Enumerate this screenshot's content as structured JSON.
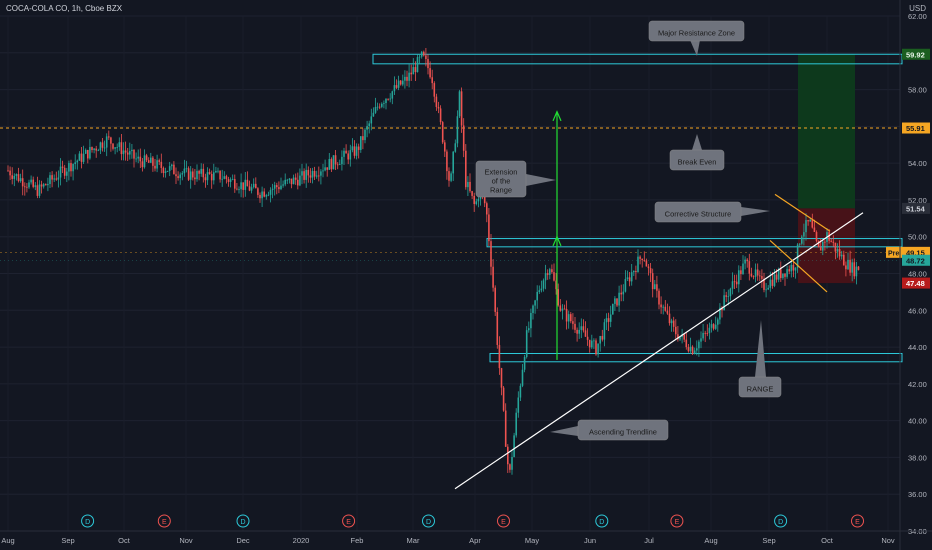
{
  "header": {
    "symbol_title": "COCA-COLA CO, 1h, Cboe BZX",
    "currency": "USD"
  },
  "colors": {
    "background": "#131722",
    "up": "#26a69a",
    "down": "#ef5350",
    "zone": "#2dc9d9",
    "trendline": "#ffffff",
    "pattern": "#f5a623",
    "arrow": "#22dd33",
    "breakeven": "#f5a623",
    "profit_box": "#0d3b1c",
    "loss_box": "#4a1218",
    "callout": "#6f737d"
  },
  "chart_data": {
    "type": "candlestick",
    "x_ticks": [
      "Aug",
      "Sep",
      "Oct",
      "Nov",
      "Dec",
      "2020",
      "Feb",
      "Mar",
      "Apr",
      "May",
      "Jun",
      "Jul",
      "Aug",
      "Sep",
      "Oct",
      "Nov"
    ],
    "y_ticks": [
      "62.00",
      "60.00",
      "58.00",
      "56.00",
      "54.00",
      "52.00",
      "50.00",
      "48.00",
      "46.00",
      "44.00",
      "42.00",
      "40.00",
      "38.00",
      "36.00",
      "34.00"
    ],
    "ylim": [
      34,
      62
    ],
    "price_path": [
      {
        "x": 0,
        "y": 53.6
      },
      {
        "x": 0.5,
        "y": 52.5
      },
      {
        "x": 1,
        "y": 53.8
      },
      {
        "x": 1.7,
        "y": 55.3
      },
      {
        "x": 2.2,
        "y": 54.2
      },
      {
        "x": 3.0,
        "y": 53.4
      },
      {
        "x": 3.6,
        "y": 53.3
      },
      {
        "x": 4.3,
        "y": 52.4
      },
      {
        "x": 5.0,
        "y": 53.2
      },
      {
        "x": 5.6,
        "y": 54.1
      },
      {
        "x": 6.0,
        "y": 54.7
      },
      {
        "x": 6.4,
        "y": 57.3
      },
      {
        "x": 6.9,
        "y": 58.6
      },
      {
        "x": 7.15,
        "y": 59.8
      },
      {
        "x": 7.3,
        "y": 58.8
      },
      {
        "x": 7.5,
        "y": 55.0
      },
      {
        "x": 7.6,
        "y": 52.7
      },
      {
        "x": 7.75,
        "y": 57.6
      },
      {
        "x": 7.85,
        "y": 53.0
      },
      {
        "x": 8.0,
        "y": 51.6
      },
      {
        "x": 8.1,
        "y": 52.8
      },
      {
        "x": 8.2,
        "y": 51.4
      },
      {
        "x": 8.3,
        "y": 48.0
      },
      {
        "x": 8.45,
        "y": 42.0
      },
      {
        "x": 8.6,
        "y": 36.8
      },
      {
        "x": 8.75,
        "y": 41.0
      },
      {
        "x": 8.9,
        "y": 44.5
      },
      {
        "x": 9.1,
        "y": 47.0
      },
      {
        "x": 9.3,
        "y": 48.5
      },
      {
        "x": 9.5,
        "y": 46.0
      },
      {
        "x": 9.8,
        "y": 45.0
      },
      {
        "x": 10.1,
        "y": 43.9
      },
      {
        "x": 10.4,
        "y": 46.2
      },
      {
        "x": 10.7,
        "y": 48.0
      },
      {
        "x": 10.9,
        "y": 49.1
      },
      {
        "x": 11.1,
        "y": 47.0
      },
      {
        "x": 11.4,
        "y": 44.9
      },
      {
        "x": 11.7,
        "y": 43.9
      },
      {
        "x": 12.0,
        "y": 45.0
      },
      {
        "x": 12.3,
        "y": 47.0
      },
      {
        "x": 12.6,
        "y": 48.6
      },
      {
        "x": 12.9,
        "y": 47.3
      },
      {
        "x": 13.2,
        "y": 48.0
      },
      {
        "x": 13.45,
        "y": 48.5
      },
      {
        "x": 13.55,
        "y": 50.2
      },
      {
        "x": 13.7,
        "y": 50.8
      },
      {
        "x": 13.85,
        "y": 49.2
      },
      {
        "x": 14.0,
        "y": 50.1
      },
      {
        "x": 14.15,
        "y": 49.3
      },
      {
        "x": 14.3,
        "y": 48.6
      },
      {
        "x": 14.45,
        "y": 48.2
      },
      {
        "x": 14.55,
        "y": 48.4
      }
    ],
    "annotations": {
      "resistance_label": "Major Resistance Zone",
      "break_even_label": "Break Even",
      "extension_label": "Extension\nof the\nRange",
      "corrective_label": "Corrective Structure",
      "range_label": "RANGE",
      "trendline_label": "Ascending Trendline"
    },
    "price_tags": {
      "target": "59.92",
      "break_even": "55.91",
      "entry_top": "51.54",
      "pre_market_label": "Pre",
      "pre_market": "49.15",
      "last": "48.72",
      "stop": "47.48"
    },
    "event_markers": [
      {
        "x": 1.35,
        "label": "D"
      },
      {
        "x": 2.65,
        "label": "E"
      },
      {
        "x": 4.0,
        "label": "D"
      },
      {
        "x": 5.85,
        "label": "E"
      },
      {
        "x": 7.25,
        "label": "D"
      },
      {
        "x": 8.5,
        "label": "E"
      },
      {
        "x": 10.2,
        "label": "D"
      },
      {
        "x": 11.45,
        "label": "E"
      },
      {
        "x": 13.2,
        "label": "D"
      },
      {
        "x": 14.5,
        "label": "E"
      }
    ]
  }
}
